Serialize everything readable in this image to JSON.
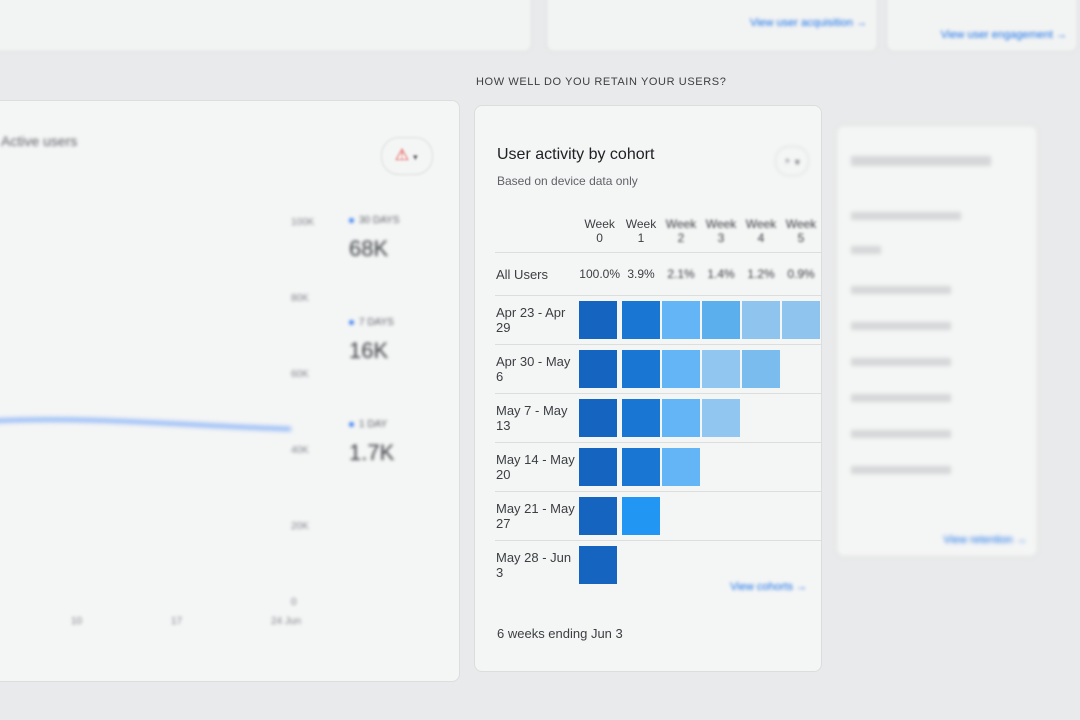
{
  "top": {
    "link_left": "View user acquisition →",
    "link_right": "View user engagement →"
  },
  "section_title": "HOW WELL DO YOU RETAIN YOUR USERS?",
  "active_users": {
    "title": "Active users",
    "warning_icon": "warning-icon",
    "y_ticks": [
      "100K",
      "80K",
      "60K",
      "40K",
      "20K",
      "0"
    ],
    "x_ticks": [
      "10",
      "17",
      "24 Jun"
    ],
    "legend": [
      {
        "label": "30 DAYS",
        "value": "68K"
      },
      {
        "label": "7 DAYS",
        "value": "16K"
      },
      {
        "label": "1 DAY",
        "value": "1.7K"
      }
    ],
    "accent": "#4285f4"
  },
  "cohort": {
    "title": "User activity by cohort",
    "subtitle": "Based on device data only",
    "weeks": [
      "Week 0",
      "Week 1",
      "Week 2",
      "Week 3",
      "Week 4",
      "Week 5"
    ],
    "all_users": {
      "label": "All Users",
      "values": [
        "100.0%",
        "3.9%",
        "2.1%",
        "1.4%",
        "1.2%",
        "0.9%"
      ]
    },
    "rows": [
      {
        "label": "Apr 23 - Apr 29",
        "cells": [
          "#1565c0",
          "#1976d2",
          "#64b5f6",
          "#5aafec",
          "#8ec4ee",
          "#8ec4ee"
        ]
      },
      {
        "label": "Apr 30 - May 6",
        "cells": [
          "#1565c0",
          "#1976d2",
          "#64b5f6",
          "#90c6ef",
          "#7bbcee"
        ]
      },
      {
        "label": "May 7 - May 13",
        "cells": [
          "#1565c0",
          "#1976d2",
          "#64b5f6",
          "#90c6ef"
        ]
      },
      {
        "label": "May 14 - May 20",
        "cells": [
          "#1565c0",
          "#1976d2",
          "#64b5f6"
        ]
      },
      {
        "label": "May 21 - May 27",
        "cells": [
          "#1565c0",
          "#2196f3"
        ]
      },
      {
        "label": "May 28 - Jun 3",
        "cells": [
          "#1565c0"
        ]
      }
    ],
    "footer": "6 weeks ending Jun 3",
    "link": "View cohorts →"
  },
  "right_panel": {
    "link": "View retention →"
  }
}
